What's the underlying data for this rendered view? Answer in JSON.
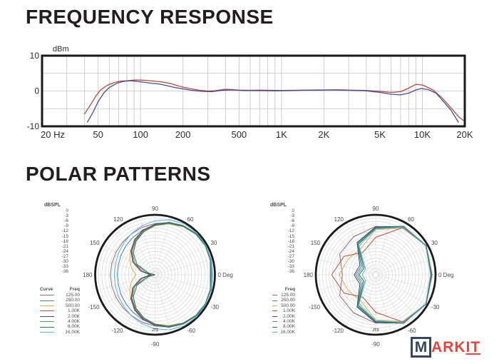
{
  "titles": {
    "frequency_response": "FREQUENCY RESPONSE",
    "polar_patterns": "POLAR PATTERNS"
  },
  "watermark": {
    "boxed_letter": "M",
    "rest": "ARK",
    "underlined": "IT",
    "box_color": "#39455a",
    "text_color": "#e2473d"
  },
  "chart_data": [
    {
      "id": "frequency_response",
      "type": "line",
      "title": "FREQUENCY RESPONSE",
      "ylabel": "dBm",
      "xscale": "log",
      "xlim": [
        20,
        20000
      ],
      "ylim": [
        -10,
        10
      ],
      "grid": true,
      "y_ticks": [
        {
          "value": 10,
          "label": "10"
        },
        {
          "value": 0,
          "label": "0"
        },
        {
          "value": -10,
          "label": "-10"
        }
      ],
      "x_ticks": [
        {
          "value": 20,
          "label": "20 Hz"
        },
        {
          "value": 50,
          "label": "50"
        },
        {
          "value": 100,
          "label": "100"
        },
        {
          "value": 200,
          "label": "200"
        },
        {
          "value": 500,
          "label": "500"
        },
        {
          "value": 1000,
          "label": "1K"
        },
        {
          "value": 2000,
          "label": "2K"
        },
        {
          "value": 5000,
          "label": "5K"
        },
        {
          "value": 10000,
          "label": "10K"
        },
        {
          "value": 20000,
          "label": "20K"
        }
      ],
      "series": [
        {
          "name": "response-red",
          "color": "#b5493f",
          "points": [
            [
              40,
              -6.5
            ],
            [
              44,
              -4
            ],
            [
              48,
              -1.5
            ],
            [
              52,
              0.3
            ],
            [
              58,
              1.6
            ],
            [
              65,
              2.4
            ],
            [
              72,
              2.8
            ],
            [
              80,
              2.9
            ],
            [
              90,
              3.1
            ],
            [
              100,
              3.1
            ],
            [
              110,
              3.0
            ],
            [
              125,
              2.8
            ],
            [
              140,
              2.6
            ],
            [
              160,
              2.2
            ],
            [
              180,
              1.6
            ],
            [
              200,
              1.1
            ],
            [
              230,
              0.6
            ],
            [
              260,
              0.2
            ],
            [
              300,
              0.0
            ],
            [
              340,
              0.1
            ],
            [
              400,
              0.5
            ],
            [
              450,
              0.4
            ],
            [
              500,
              0.25
            ],
            [
              600,
              0.2
            ],
            [
              700,
              0.25
            ],
            [
              800,
              0.2
            ],
            [
              1000,
              0.15
            ],
            [
              1200,
              0.2
            ],
            [
              1500,
              0.25
            ],
            [
              2000,
              0.3
            ],
            [
              2500,
              0.35
            ],
            [
              3000,
              0.25
            ],
            [
              4000,
              0.15
            ],
            [
              5000,
              -0.1
            ],
            [
              6000,
              -0.4
            ],
            [
              7000,
              -0.2
            ],
            [
              8000,
              0.8
            ],
            [
              9000,
              1.9
            ],
            [
              10000,
              1.7
            ],
            [
              11000,
              1.0
            ],
            [
              12000,
              0.2
            ],
            [
              14000,
              -2.2
            ],
            [
              16000,
              -4.8
            ],
            [
              18000,
              -7.2
            ],
            [
              19500,
              -8.3
            ]
          ]
        },
        {
          "name": "response-blue",
          "color": "#494c8f",
          "points": [
            [
              42,
              -8.8
            ],
            [
              46,
              -6
            ],
            [
              50,
              -3
            ],
            [
              55,
              -0.5
            ],
            [
              60,
              1.0
            ],
            [
              68,
              2.2
            ],
            [
              75,
              2.7
            ],
            [
              85,
              2.9
            ],
            [
              95,
              2.7
            ],
            [
              105,
              2.5
            ],
            [
              120,
              2.2
            ],
            [
              135,
              2.0
            ],
            [
              155,
              1.5
            ],
            [
              175,
              1.0
            ],
            [
              200,
              0.6
            ],
            [
              230,
              0.2
            ],
            [
              270,
              -0.1
            ],
            [
              320,
              -0.2
            ],
            [
              380,
              0.2
            ],
            [
              450,
              0.3
            ],
            [
              550,
              0.15
            ],
            [
              700,
              0.1
            ],
            [
              900,
              0.05
            ],
            [
              1100,
              0.1
            ],
            [
              1400,
              0.2
            ],
            [
              1800,
              0.25
            ],
            [
              2300,
              0.3
            ],
            [
              3000,
              0.2
            ],
            [
              4000,
              0.05
            ],
            [
              5000,
              -0.4
            ],
            [
              6000,
              -0.9
            ],
            [
              7000,
              -1.1
            ],
            [
              8000,
              -0.6
            ],
            [
              9000,
              0.3
            ],
            [
              9800,
              0.7
            ],
            [
              11000,
              0.4
            ],
            [
              12500,
              -0.6
            ],
            [
              14000,
              -2.8
            ],
            [
              16000,
              -5.5
            ],
            [
              18000,
              -8.8
            ]
          ]
        }
      ]
    },
    {
      "id": "polar_left",
      "type": "polar",
      "units_label": "dBSPL",
      "radial_ticks": [
        "0",
        "-3",
        "-6",
        "-9",
        "-12",
        "-15",
        "-18",
        "-21",
        "-24",
        "-27",
        "-30",
        "-33",
        "-36"
      ],
      "rmin_db": -36,
      "footer_mark": "JTS",
      "legend": {
        "curve_header": "Curve",
        "freq_header": "Freq"
      },
      "angle_labels": [
        {
          "deg": 90,
          "label": "90"
        },
        {
          "deg": 120,
          "label": "120"
        },
        {
          "deg": 150,
          "label": "150"
        },
        {
          "deg": 180,
          "label": "180"
        },
        {
          "deg": -150,
          "label": "-150"
        },
        {
          "deg": -120,
          "label": "-120"
        },
        {
          "deg": -90,
          "label": "-90"
        },
        {
          "deg": -60,
          "label": "-60"
        },
        {
          "deg": -30,
          "label": "-30"
        },
        {
          "deg": 0,
          "label": "0 Deg"
        },
        {
          "deg": 30,
          "label": "30"
        },
        {
          "deg": 60,
          "label": "60"
        }
      ],
      "angle_step_deg": 15,
      "series": [
        {
          "freq": "125.00",
          "color": "#9b6b80",
          "values_db": [
            -1.5,
            -1.0,
            -0.8,
            -1.3,
            -2.2,
            -3.6,
            -5.2,
            -6.5,
            -7.6,
            -8.4,
            -8.9,
            -9.1,
            -9.1
          ]
        },
        {
          "freq": "250.00",
          "color": "#4e7fae",
          "values_db": [
            -1.5,
            -1.0,
            -0.9,
            -1.4,
            -2.6,
            -4.4,
            -6.2,
            -8.0,
            -9.8,
            -11.3,
            -12.4,
            -13.1,
            -13.3
          ]
        },
        {
          "freq": "500.00",
          "color": "#ddab57",
          "values_db": [
            -2.0,
            -1.3,
            -0.9,
            -1.3,
            -2.5,
            -4.3,
            -6.5,
            -9.2,
            -12.5,
            -15.2,
            -18.4,
            -21.5,
            -24.5
          ]
        },
        {
          "freq": "1.00K",
          "color": "#c05045",
          "values_db": [
            -2.5,
            -1.4,
            -0.9,
            -1.1,
            -2.0,
            -3.6,
            -5.8,
            -8.6,
            -12.0,
            -16.0,
            -21.0,
            -28.0,
            -34.0
          ]
        },
        {
          "freq": "2.00K",
          "color": "#3f4a70",
          "values_db": [
            -2.3,
            -1.3,
            -0.8,
            -1.0,
            -1.9,
            -3.4,
            -5.6,
            -8.2,
            -11.5,
            -15.5,
            -20.5,
            -27.0,
            -33.0
          ]
        },
        {
          "freq": "4.00K",
          "color": "#55a06b",
          "values_db": [
            -2.6,
            -1.5,
            -1.0,
            -1.2,
            -2.1,
            -3.8,
            -6.0,
            -9.0,
            -12.5,
            -16.5,
            -22.0,
            -30.0,
            -36.0
          ]
        },
        {
          "freq": "8.00K",
          "color": "#2f6e58",
          "values_db": [
            -2.8,
            -1.6,
            -1.1,
            -1.3,
            -2.3,
            -4.0,
            -6.3,
            -9.4,
            -13.0,
            -17.5,
            -23.5,
            -32.0,
            -36.0
          ]
        },
        {
          "freq": "16.00K",
          "color": "#5ab4d6",
          "values_db": [
            -2.0,
            -1.2,
            -0.7,
            -0.5,
            -0.7,
            -1.8,
            -3.5,
            -5.5,
            -7.5,
            -9.3,
            -10.5,
            -11.2,
            -11.5
          ]
        }
      ]
    },
    {
      "id": "polar_right",
      "type": "polar",
      "units_label": "dBSPL",
      "radial_ticks": [
        "0",
        "-3",
        "-6",
        "-9",
        "-12",
        "-15",
        "-18",
        "-21",
        "-24",
        "-27",
        "-30",
        "-33",
        "-36"
      ],
      "rmin_db": -36,
      "footer_mark": "JTS",
      "legend": {
        "curve_header": "",
        "freq_header": "Freq"
      },
      "angle_labels": [
        {
          "deg": 90,
          "label": "90"
        },
        {
          "deg": 120,
          "label": "120"
        },
        {
          "deg": 150,
          "label": "150"
        },
        {
          "deg": 180,
          "label": "180"
        },
        {
          "deg": -150,
          "label": "-150"
        },
        {
          "deg": -120,
          "label": "-120"
        },
        {
          "deg": -90,
          "label": "-90"
        },
        {
          "deg": -60,
          "label": "-60"
        },
        {
          "deg": -30,
          "label": "-30"
        },
        {
          "deg": 0,
          "label": "0 Deg"
        },
        {
          "deg": 30,
          "label": "30"
        },
        {
          "deg": 60,
          "label": "60"
        }
      ],
      "angle_step_deg": 30,
      "series": [
        {
          "freq": "125.00",
          "color": "#9b6b80",
          "values_db": [
            -2.5,
            -1.0,
            -3.5,
            -7.0,
            -9.5,
            -11.0,
            -16.0
          ]
        },
        {
          "freq": "250.00",
          "color": "#4e7fae",
          "values_db": [
            -2.5,
            -1.0,
            -2.5,
            -7.5,
            -14.0,
            -26.0,
            -24.0
          ]
        },
        {
          "freq": "500.00",
          "color": "#ddab57",
          "values_db": [
            -2.0,
            -1.0,
            -3.5,
            -9.0,
            -18.0,
            -17.0,
            -14.0
          ]
        },
        {
          "freq": "1.00K",
          "color": "#c05045",
          "values_db": [
            -2.2,
            -1.0,
            -3.3,
            -13.5,
            -20.5,
            -14.0,
            -9.5
          ]
        },
        {
          "freq": "2.00K",
          "color": "#3f4a70",
          "values_db": [
            -2.3,
            -0.9,
            -2.4,
            -7.2,
            -13.6,
            -25.0,
            -23.0
          ]
        },
        {
          "freq": "4.00K",
          "color": "#55a06b",
          "values_db": [
            -2.6,
            -1.1,
            -2.6,
            -7.8,
            -14.5,
            -27.0,
            -25.0
          ]
        },
        {
          "freq": "8.00K",
          "color": "#2f6e58",
          "values_db": [
            -2.8,
            -1.2,
            -2.8,
            -8.0,
            -15.0,
            -28.0,
            -26.0
          ]
        },
        {
          "freq": "16.00K",
          "color": "#5ab4d6",
          "values_db": [
            -3.0,
            -1.3,
            -3.0,
            -8.5,
            -16.0,
            -29.0,
            -28.0
          ]
        }
      ]
    }
  ]
}
